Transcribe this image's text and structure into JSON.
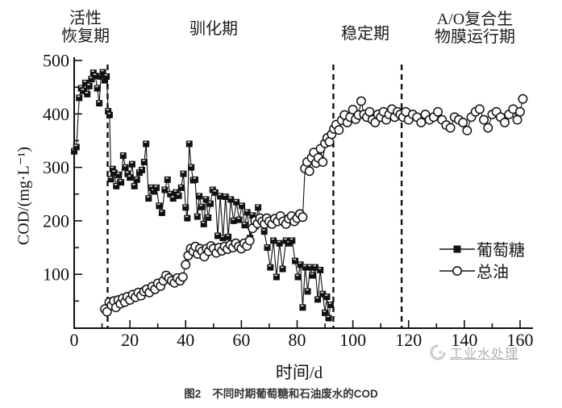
{
  "figure": {
    "caption_label": "图2",
    "caption_text": "不同时期葡萄糖和石油废水的COD"
  },
  "watermark": {
    "text": "工业水处理"
  },
  "chart_data": {
    "type": "line",
    "title": "",
    "xlabel": "时间/d",
    "ylabel": "COD/(mg·L⁻¹)",
    "xlim": [
      0,
      165
    ],
    "ylim": [
      0,
      500
    ],
    "x_ticks": [
      0,
      20,
      40,
      60,
      80,
      100,
      120,
      140,
      160
    ],
    "y_ticks": [
      100,
      200,
      300,
      400,
      500
    ],
    "grid": false,
    "legend_position": "right-middle",
    "line_color": "#111111",
    "phase_lines_days": [
      12,
      93,
      117.5
    ],
    "phases": [
      {
        "name": "recovery",
        "label_line1": "活性",
        "label_line2": "恢复期",
        "start_day": 0,
        "end_day": 12
      },
      {
        "name": "acclimation",
        "label_line1": "驯化期",
        "label_line2": "",
        "start_day": 12,
        "end_day": 93
      },
      {
        "name": "stable",
        "label_line1": "稳定期",
        "label_line2": "",
        "start_day": 93,
        "end_day": 117.5
      },
      {
        "name": "ao-biofilm",
        "label_line1": "A/O复合生",
        "label_line2": "物膜运行期",
        "start_day": 117.5,
        "end_day": 165
      }
    ],
    "series": [
      {
        "name": "葡萄糖",
        "marker": "filled-square",
        "color": "#111111",
        "points": [
          [
            0,
            330
          ],
          [
            0.8,
            338
          ],
          [
            1.8,
            430
          ],
          [
            2.5,
            448
          ],
          [
            3.2,
            443
          ],
          [
            4,
            458
          ],
          [
            4.7,
            437
          ],
          [
            5.4,
            452
          ],
          [
            6.2,
            465
          ],
          [
            6.9,
            477
          ],
          [
            7.6,
            471
          ],
          [
            8.3,
            448
          ],
          [
            9,
            420
          ],
          [
            9.6,
            470
          ],
          [
            10.3,
            478
          ],
          [
            11,
            463
          ],
          [
            11.6,
            470
          ],
          [
            12.2,
            405
          ],
          [
            12.7,
            398
          ],
          [
            13.2,
            278
          ],
          [
            13.8,
            297
          ],
          [
            14.4,
            290
          ],
          [
            15.1,
            265
          ],
          [
            16,
            286
          ],
          [
            16.8,
            272
          ],
          [
            17.6,
            322
          ],
          [
            18.4,
            300
          ],
          [
            19.2,
            288
          ],
          [
            20,
            281
          ],
          [
            20.8,
            306
          ],
          [
            21.6,
            265
          ],
          [
            22.5,
            277
          ],
          [
            23.4,
            290
          ],
          [
            24.3,
            295
          ],
          [
            25.1,
            310
          ],
          [
            25.8,
            344
          ],
          [
            26.7,
            242
          ],
          [
            27.7,
            262
          ],
          [
            28.6,
            255
          ],
          [
            29.5,
            262
          ],
          [
            30.5,
            228
          ],
          [
            31.5,
            215
          ],
          [
            32.5,
            258
          ],
          [
            33.5,
            277
          ],
          [
            34.5,
            250
          ],
          [
            35.5,
            242
          ],
          [
            36.5,
            253
          ],
          [
            37.5,
            247
          ],
          [
            38.4,
            262
          ],
          [
            39.2,
            288
          ],
          [
            40,
            225
          ],
          [
            40.6,
            205
          ],
          [
            41.3,
            344
          ],
          [
            42,
            300
          ],
          [
            42.7,
            276
          ],
          [
            43.4,
            277
          ],
          [
            44.2,
            208
          ],
          [
            44.9,
            246
          ],
          [
            45.7,
            226
          ],
          [
            46.5,
            194
          ],
          [
            47.3,
            240
          ],
          [
            48.1,
            206
          ],
          [
            48.9,
            232
          ],
          [
            49.7,
            258
          ],
          [
            50.6,
            253
          ],
          [
            51.5,
            172
          ],
          [
            52.4,
            246
          ],
          [
            53.4,
            168
          ],
          [
            54.3,
            245
          ],
          [
            55.3,
            170
          ],
          [
            56.2,
            240
          ],
          [
            57.2,
            200
          ],
          [
            58.2,
            235
          ],
          [
            59.2,
            202
          ],
          [
            60.2,
            228
          ],
          [
            61.2,
            192
          ],
          [
            62.1,
            216
          ],
          [
            63.1,
            168
          ],
          [
            64,
            210
          ],
          [
            65,
            190
          ],
          [
            66,
            225
          ],
          [
            67,
            195
          ],
          [
            68.2,
            180
          ],
          [
            69.3,
            150
          ],
          [
            70.4,
            113
          ],
          [
            71.5,
            163
          ],
          [
            72.6,
            95
          ],
          [
            73.7,
            158
          ],
          [
            74.8,
            110
          ],
          [
            76,
            163
          ],
          [
            77.1,
            158
          ],
          [
            78.2,
            163
          ],
          [
            79.3,
            125
          ],
          [
            80.3,
            95
          ],
          [
            81.2,
            118
          ],
          [
            82,
            38
          ],
          [
            82.9,
            113
          ],
          [
            83.8,
            68
          ],
          [
            84.7,
            113
          ],
          [
            85.6,
            98
          ],
          [
            86.5,
            113
          ],
          [
            87.4,
            53
          ],
          [
            88.3,
            108
          ],
          [
            89.2,
            63
          ],
          [
            90,
            28
          ],
          [
            90.7,
            58
          ],
          [
            91.3,
            18
          ],
          [
            92,
            43
          ]
        ]
      },
      {
        "name": "总油",
        "marker": "open-circle",
        "color": "#111111",
        "points": [
          [
            11,
            35
          ],
          [
            11.8,
            30
          ],
          [
            12.6,
            48
          ],
          [
            13.4,
            42
          ],
          [
            14.2,
            50
          ],
          [
            15,
            38
          ],
          [
            15.8,
            52
          ],
          [
            16.6,
            45
          ],
          [
            17.4,
            55
          ],
          [
            18.2,
            48
          ],
          [
            19,
            58
          ],
          [
            20,
            52
          ],
          [
            21,
            62
          ],
          [
            22,
            57
          ],
          [
            23,
            66
          ],
          [
            24,
            60
          ],
          [
            25,
            68
          ],
          [
            26,
            72
          ],
          [
            27,
            66
          ],
          [
            28,
            77
          ],
          [
            29,
            72
          ],
          [
            30,
            83
          ],
          [
            31,
            78
          ],
          [
            32,
            88
          ],
          [
            33,
            98
          ],
          [
            34,
            93
          ],
          [
            35,
            88
          ],
          [
            36,
            84
          ],
          [
            37,
            93
          ],
          [
            38,
            88
          ],
          [
            39,
            95
          ],
          [
            40,
            118
          ],
          [
            40.9,
            135
          ],
          [
            41.8,
            148
          ],
          [
            42.7,
            143
          ],
          [
            43.5,
            152
          ],
          [
            44.3,
            138
          ],
          [
            45.1,
            148
          ],
          [
            45.9,
            143
          ],
          [
            46.7,
            133
          ],
          [
            47.5,
            148
          ],
          [
            48.3,
            143
          ],
          [
            49.1,
            153
          ],
          [
            50,
            148
          ],
          [
            51,
            140
          ],
          [
            52,
            150
          ],
          [
            53,
            144
          ],
          [
            54,
            152
          ],
          [
            55,
            147
          ],
          [
            56,
            155
          ],
          [
            57,
            150
          ],
          [
            58,
            158
          ],
          [
            59,
            152
          ],
          [
            60,
            148
          ],
          [
            61,
            158
          ],
          [
            62,
            153
          ],
          [
            63,
            163
          ],
          [
            64,
            186
          ],
          [
            64.9,
            200
          ],
          [
            65.8,
            195
          ],
          [
            66.7,
            205
          ],
          [
            67.5,
            199
          ],
          [
            68.3,
            194
          ],
          [
            69.1,
            205
          ],
          [
            70,
            199
          ],
          [
            71,
            194
          ],
          [
            72,
            204
          ],
          [
            73,
            199
          ],
          [
            74,
            209
          ],
          [
            75,
            199
          ],
          [
            76,
            194
          ],
          [
            77,
            204
          ],
          [
            78,
            209
          ],
          [
            79,
            199
          ],
          [
            80,
            205
          ],
          [
            81,
            213
          ],
          [
            82,
            207
          ],
          [
            82.8,
            298
          ],
          [
            83.6,
            310
          ],
          [
            84.4,
            293
          ],
          [
            85.2,
            318
          ],
          [
            86,
            328
          ],
          [
            86.8,
            308
          ],
          [
            87.6,
            318
          ],
          [
            88.4,
            335
          ],
          [
            89.2,
            310
          ],
          [
            90,
            345
          ],
          [
            90.8,
            355
          ],
          [
            91.6,
            348
          ],
          [
            92.4,
            362
          ],
          [
            93.2,
            372
          ],
          [
            94,
            380
          ],
          [
            95,
            370
          ],
          [
            96,
            388
          ],
          [
            97,
            398
          ],
          [
            98,
            384
          ],
          [
            99,
            394
          ],
          [
            100,
            408
          ],
          [
            101,
            390
          ],
          [
            102,
            398
          ],
          [
            103,
            424
          ],
          [
            104,
            399
          ],
          [
            105,
            394
          ],
          [
            106,
            404
          ],
          [
            107,
            389
          ],
          [
            108,
            384
          ],
          [
            109,
            399
          ],
          [
            110,
            394
          ],
          [
            111,
            404
          ],
          [
            112,
            389
          ],
          [
            113,
            399
          ],
          [
            114,
            409
          ],
          [
            115,
            394
          ],
          [
            116,
            404
          ],
          [
            117,
            399
          ],
          [
            118,
            394
          ],
          [
            119,
            404
          ],
          [
            120,
            389
          ],
          [
            121.5,
            399
          ],
          [
            123,
            394
          ],
          [
            124.5,
            384
          ],
          [
            126,
            399
          ],
          [
            127.5,
            389
          ],
          [
            129,
            394
          ],
          [
            130.5,
            404
          ],
          [
            132,
            389
          ],
          [
            133.5,
            379
          ],
          [
            135,
            374
          ],
          [
            136.5,
            394
          ],
          [
            138,
            389
          ],
          [
            139.5,
            384
          ],
          [
            141,
            369
          ],
          [
            142.5,
            394
          ],
          [
            144,
            404
          ],
          [
            145.5,
            409
          ],
          [
            147,
            389
          ],
          [
            148.5,
            374
          ],
          [
            150,
            399
          ],
          [
            151.5,
            404
          ],
          [
            153,
            394
          ],
          [
            154.5,
            384
          ],
          [
            156,
            399
          ],
          [
            157.5,
            409
          ],
          [
            159,
            389
          ],
          [
            160,
            404
          ],
          [
            161,
            428
          ]
        ]
      }
    ]
  }
}
